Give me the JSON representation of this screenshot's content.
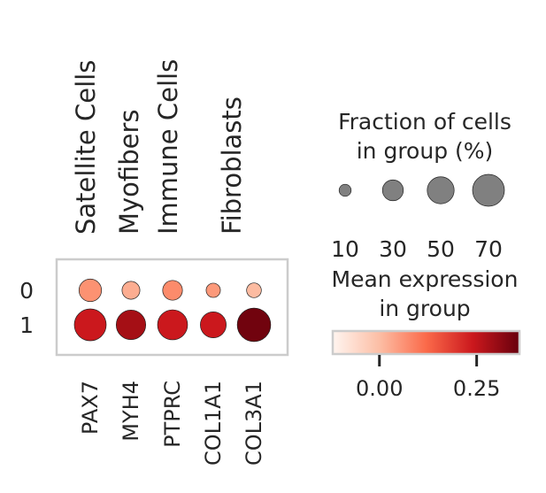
{
  "chart_data": {
    "type": "dotplot",
    "groups": [
      "0",
      "1"
    ],
    "genes": [
      "PAX7",
      "MYH4",
      "PTPRC",
      "COL1A1",
      "COL3A1"
    ],
    "var_group_labels": [
      "Satellite Cells",
      "Myofibers",
      "Immune Cells",
      "Fibroblasts"
    ],
    "fraction_percent": [
      [
        35,
        22,
        27,
        14,
        15
      ],
      [
        70,
        60,
        62,
        46,
        77
      ]
    ],
    "mean_expression": [
      [
        0.06,
        0.02,
        0.07,
        0.05,
        0.0
      ],
      [
        0.24,
        0.3,
        0.24,
        0.24,
        0.35
      ]
    ],
    "size_legend": {
      "title_line1": "Fraction of cells",
      "title_line2": "in group (%)",
      "values": [
        10,
        30,
        50,
        70
      ],
      "labels": [
        "10",
        "30",
        "50",
        "70"
      ]
    },
    "color_legend": {
      "title_line1": "Mean expression",
      "title_line2": "in group",
      "colormap": "Reds",
      "range": [
        -0.12,
        0.36
      ],
      "ticks": [
        0.0,
        0.25
      ],
      "tick_labels": [
        "0.00",
        "0.25"
      ]
    },
    "colors": {
      "frame": "#cccccc",
      "dot_edge": "#222222",
      "size_legend_fill": "#808080"
    }
  }
}
